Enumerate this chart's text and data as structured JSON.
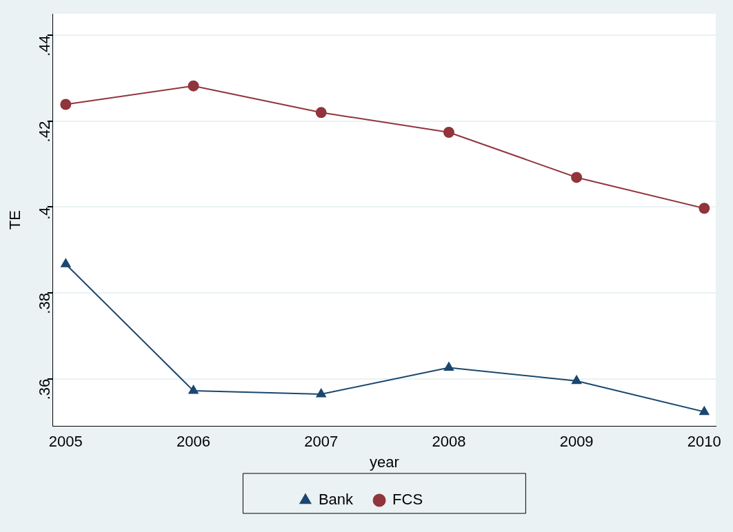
{
  "chart_data": {
    "type": "line",
    "xlabel": "year",
    "ylabel": "TE",
    "x": [
      2005,
      2006,
      2007,
      2008,
      2009,
      2010
    ],
    "series": [
      {
        "name": "Bank",
        "color": "#1a476f",
        "marker": "triangle",
        "values": [
          0.3867,
          0.3572,
          0.3564,
          0.3626,
          0.3595,
          0.3523
        ]
      },
      {
        "name": "FCS",
        "color": "#90353b",
        "marker": "circle",
        "values": [
          0.4239,
          0.4282,
          0.422,
          0.4174,
          0.4069,
          0.3997
        ]
      }
    ],
    "xlim": [
      2004.9,
      2010.09
    ],
    "xticks": [
      2005,
      2006,
      2007,
      2008,
      2009,
      2010
    ],
    "ylim": [
      0.349,
      0.445
    ],
    "yticks": [
      {
        "value": 0.36,
        "label": ".36"
      },
      {
        "value": 0.38,
        "label": ".38"
      },
      {
        "value": 0.4,
        "label": ".4"
      },
      {
        "value": 0.42,
        "label": ".42"
      },
      {
        "value": 0.44,
        "label": ".44"
      }
    ],
    "grid": "y",
    "legend": "bottom"
  }
}
